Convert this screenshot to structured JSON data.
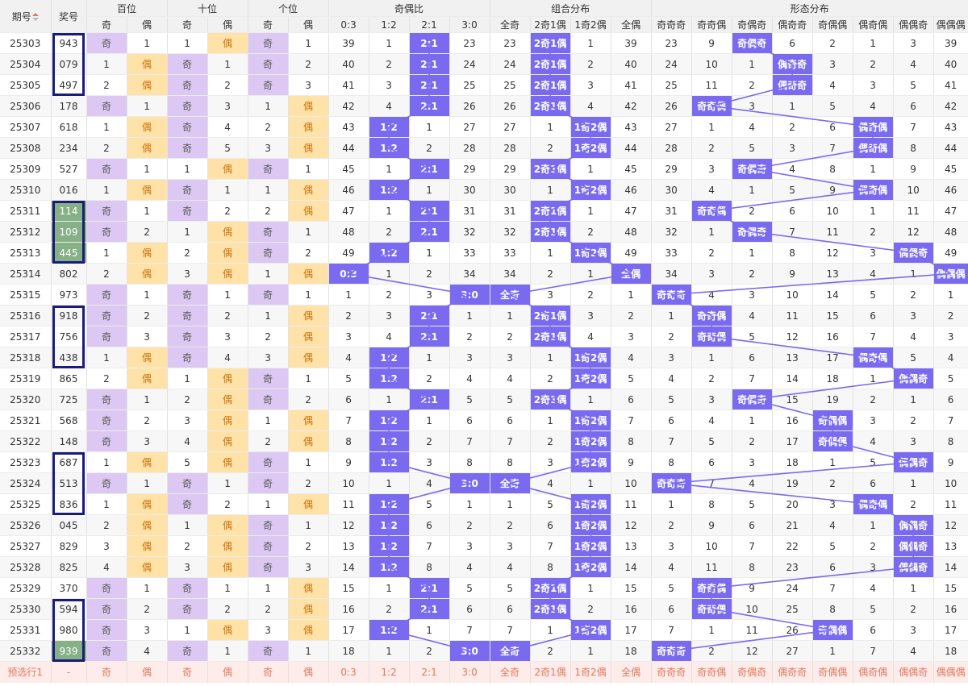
{
  "headers": {
    "issue": "期号",
    "draw": "奖号",
    "hundreds": "百位",
    "tens": "十位",
    "units": "个位",
    "oe_ratio": "奇偶比",
    "combo": "组合分布",
    "shape": "形态分布",
    "sub_qi": "奇",
    "sub_ou": "偶",
    "ratio_cols": [
      "0:3",
      "1:2",
      "2:1",
      "3:0"
    ],
    "combo_cols": [
      "全奇",
      "2奇1偶",
      "1奇2偶",
      "全偶"
    ],
    "shape_cols": [
      "奇奇奇",
      "奇奇偶",
      "奇偶奇",
      "偶奇奇",
      "奇偶偶",
      "偶奇偶",
      "偶偶奇",
      "偶偶偶"
    ]
  },
  "colors": {
    "hit": "#7a6af0",
    "qi": "#dcc8f2",
    "ou": "#ffe2a8",
    "frame": "#1b1b7a",
    "green": "#86b186",
    "preset": "#fdece9"
  },
  "rows": [
    [
      "25303",
      "943",
      "奇",
      "1",
      "1",
      "偶",
      "奇",
      "1",
      "39",
      "1",
      "2:1",
      "23",
      "23",
      "2奇1偶",
      "1",
      "39",
      "23",
      "9",
      "奇偶奇",
      "6",
      "2",
      "1",
      "3",
      "39"
    ],
    [
      "25304",
      "079",
      "1",
      "偶",
      "奇",
      "1",
      "奇",
      "2",
      "40",
      "2",
      "2:1",
      "24",
      "24",
      "2奇1偶",
      "2",
      "40",
      "24",
      "10",
      "1",
      "偶奇奇",
      "3",
      "2",
      "4",
      "40"
    ],
    [
      "25305",
      "497",
      "2",
      "偶",
      "奇",
      "2",
      "奇",
      "3",
      "41",
      "3",
      "2:1",
      "25",
      "25",
      "2奇1偶",
      "3",
      "41",
      "25",
      "11",
      "2",
      "偶奇奇",
      "4",
      "3",
      "5",
      "41"
    ],
    [
      "25306",
      "178",
      "奇",
      "1",
      "奇",
      "3",
      "1",
      "偶",
      "42",
      "4",
      "2:1",
      "26",
      "26",
      "2奇1偶",
      "4",
      "42",
      "26",
      "奇奇偶",
      "3",
      "1",
      "5",
      "4",
      "6",
      "42"
    ],
    [
      "25307",
      "618",
      "1",
      "偶",
      "奇",
      "4",
      "2",
      "偶",
      "43",
      "1:2",
      "1",
      "27",
      "27",
      "1",
      "1奇2偶",
      "43",
      "27",
      "1",
      "4",
      "2",
      "6",
      "偶奇偶",
      "7",
      "43"
    ],
    [
      "25308",
      "234",
      "2",
      "偶",
      "奇",
      "5",
      "3",
      "偶",
      "44",
      "1:2",
      "2",
      "28",
      "28",
      "2",
      "1奇2偶",
      "44",
      "28",
      "2",
      "5",
      "3",
      "7",
      "偶奇偶",
      "8",
      "44"
    ],
    [
      "25309",
      "527",
      "奇",
      "1",
      "1",
      "偶",
      "奇",
      "1",
      "45",
      "1",
      "2:1",
      "29",
      "29",
      "2奇1偶",
      "1",
      "45",
      "29",
      "3",
      "奇偶奇",
      "4",
      "8",
      "1",
      "9",
      "45"
    ],
    [
      "25310",
      "016",
      "1",
      "偶",
      "奇",
      "1",
      "1",
      "偶",
      "46",
      "1:2",
      "1",
      "30",
      "30",
      "1",
      "1奇2偶",
      "46",
      "30",
      "4",
      "1",
      "5",
      "9",
      "偶奇偶",
      "10",
      "46"
    ],
    [
      "25311",
      "114",
      "奇",
      "1",
      "奇",
      "2",
      "2",
      "偶",
      "47",
      "1",
      "2:1",
      "31",
      "31",
      "2奇1偶",
      "1",
      "47",
      "31",
      "奇奇偶",
      "2",
      "6",
      "10",
      "1",
      "11",
      "47"
    ],
    [
      "25312",
      "109",
      "奇",
      "2",
      "1",
      "偶",
      "奇",
      "1",
      "48",
      "2",
      "2:1",
      "32",
      "32",
      "2奇1偶",
      "2",
      "48",
      "32",
      "1",
      "奇偶奇",
      "7",
      "11",
      "2",
      "12",
      "48"
    ],
    [
      "25313",
      "445",
      "1",
      "偶",
      "2",
      "偶",
      "奇",
      "2",
      "49",
      "1:2",
      "1",
      "33",
      "33",
      "1",
      "1奇2偶",
      "49",
      "33",
      "2",
      "1",
      "8",
      "12",
      "3",
      "偶偶奇",
      "49"
    ],
    [
      "25314",
      "802",
      "2",
      "偶",
      "3",
      "偶",
      "1",
      "偶",
      "0:3",
      "1",
      "2",
      "34",
      "34",
      "2",
      "1",
      "全偶",
      "34",
      "3",
      "2",
      "9",
      "13",
      "4",
      "1",
      "偶偶偶"
    ],
    [
      "25315",
      "973",
      "奇",
      "1",
      "奇",
      "1",
      "奇",
      "1",
      "1",
      "2",
      "3",
      "3:0",
      "全奇",
      "3",
      "2",
      "1",
      "奇奇奇",
      "4",
      "3",
      "10",
      "14",
      "5",
      "2",
      "1"
    ],
    [
      "25316",
      "918",
      "奇",
      "2",
      "奇",
      "2",
      "1",
      "偶",
      "2",
      "3",
      "2:1",
      "1",
      "1",
      "2奇1偶",
      "3",
      "2",
      "1",
      "奇奇偶",
      "4",
      "11",
      "15",
      "6",
      "3",
      "2"
    ],
    [
      "25317",
      "756",
      "奇",
      "3",
      "奇",
      "3",
      "2",
      "偶",
      "3",
      "4",
      "2:1",
      "2",
      "2",
      "2奇1偶",
      "4",
      "3",
      "2",
      "奇奇偶",
      "5",
      "12",
      "16",
      "7",
      "4",
      "3"
    ],
    [
      "25318",
      "438",
      "1",
      "偶",
      "奇",
      "4",
      "3",
      "偶",
      "4",
      "1:2",
      "1",
      "3",
      "3",
      "1",
      "1奇2偶",
      "4",
      "3",
      "1",
      "6",
      "13",
      "17",
      "偶奇偶",
      "5",
      "4"
    ],
    [
      "25319",
      "865",
      "2",
      "偶",
      "1",
      "偶",
      "奇",
      "1",
      "5",
      "1:2",
      "2",
      "4",
      "4",
      "2",
      "1奇2偶",
      "5",
      "4",
      "2",
      "7",
      "14",
      "18",
      "1",
      "偶偶奇",
      "5"
    ],
    [
      "25320",
      "725",
      "奇",
      "1",
      "2",
      "偶",
      "奇",
      "2",
      "6",
      "1",
      "2:1",
      "5",
      "5",
      "2奇1偶",
      "1",
      "6",
      "5",
      "3",
      "奇偶奇",
      "15",
      "19",
      "2",
      "1",
      "6"
    ],
    [
      "25321",
      "568",
      "奇",
      "2",
      "3",
      "偶",
      "1",
      "偶",
      "7",
      "1:2",
      "1",
      "6",
      "6",
      "1",
      "1奇2偶",
      "7",
      "6",
      "4",
      "1",
      "16",
      "奇偶偶",
      "3",
      "2",
      "7"
    ],
    [
      "25322",
      "148",
      "奇",
      "3",
      "4",
      "偶",
      "2",
      "偶",
      "8",
      "1:2",
      "2",
      "7",
      "7",
      "2",
      "1奇2偶",
      "8",
      "7",
      "5",
      "2",
      "17",
      "奇偶偶",
      "4",
      "3",
      "8"
    ],
    [
      "25323",
      "687",
      "1",
      "偶",
      "5",
      "偶",
      "奇",
      "1",
      "9",
      "1:2",
      "3",
      "8",
      "8",
      "3",
      "1奇2偶",
      "9",
      "8",
      "6",
      "3",
      "18",
      "1",
      "5",
      "偶偶奇",
      "9"
    ],
    [
      "25324",
      "513",
      "奇",
      "1",
      "奇",
      "1",
      "奇",
      "2",
      "10",
      "1",
      "4",
      "3:0",
      "全奇",
      "4",
      "1",
      "10",
      "奇奇奇",
      "7",
      "4",
      "19",
      "2",
      "6",
      "1",
      "10"
    ],
    [
      "25325",
      "836",
      "1",
      "偶",
      "奇",
      "2",
      "1",
      "偶",
      "11",
      "1:2",
      "5",
      "1",
      "1",
      "5",
      "1奇2偶",
      "11",
      "1",
      "8",
      "5",
      "20",
      "3",
      "偶奇偶",
      "2",
      "11"
    ],
    [
      "25326",
      "045",
      "2",
      "偶",
      "1",
      "偶",
      "奇",
      "1",
      "12",
      "1:2",
      "6",
      "2",
      "2",
      "6",
      "1奇2偶",
      "12",
      "2",
      "9",
      "6",
      "21",
      "4",
      "1",
      "偶偶奇",
      "12"
    ],
    [
      "25327",
      "829",
      "3",
      "偶",
      "2",
      "偶",
      "奇",
      "2",
      "13",
      "1:2",
      "7",
      "3",
      "3",
      "7",
      "1奇2偶",
      "13",
      "3",
      "10",
      "7",
      "22",
      "5",
      "2",
      "偶偶奇",
      "13"
    ],
    [
      "25328",
      "825",
      "4",
      "偶",
      "3",
      "偶",
      "奇",
      "3",
      "14",
      "1:2",
      "8",
      "4",
      "4",
      "8",
      "1奇2偶",
      "14",
      "4",
      "11",
      "8",
      "23",
      "6",
      "3",
      "偶偶奇",
      "14"
    ],
    [
      "25329",
      "370",
      "奇",
      "1",
      "奇",
      "1",
      "1",
      "偶",
      "15",
      "1",
      "2:1",
      "5",
      "5",
      "2奇1偶",
      "1",
      "15",
      "5",
      "奇奇偶",
      "9",
      "24",
      "7",
      "4",
      "1",
      "15"
    ],
    [
      "25330",
      "594",
      "奇",
      "2",
      "奇",
      "2",
      "2",
      "偶",
      "16",
      "2",
      "2:1",
      "6",
      "6",
      "2奇1偶",
      "2",
      "16",
      "6",
      "奇奇偶",
      "10",
      "25",
      "8",
      "5",
      "2",
      "16"
    ],
    [
      "25331",
      "980",
      "奇",
      "3",
      "1",
      "偶",
      "3",
      "偶",
      "17",
      "1:2",
      "1",
      "7",
      "7",
      "1",
      "1奇2偶",
      "17",
      "7",
      "1",
      "11",
      "26",
      "奇偶偶",
      "6",
      "3",
      "17"
    ],
    [
      "25332",
      "939",
      "奇",
      "4",
      "奇",
      "1",
      "奇",
      "1",
      "18",
      "1",
      "2",
      "3:0",
      "全奇",
      "2",
      "1",
      "18",
      "奇奇奇",
      "2",
      "12",
      "27",
      "1",
      "7",
      "4",
      "18"
    ]
  ],
  "preset": [
    "预选行1",
    "-",
    "奇",
    "偶",
    "奇",
    "偶",
    "奇",
    "偶",
    "0:3",
    "1:2",
    "2:1",
    "3:0",
    "全奇",
    "2奇1偶",
    "1奇2偶",
    "全偶",
    "奇奇奇",
    "奇奇偶",
    "奇偶奇",
    "偶奇奇",
    "奇偶偶",
    "偶奇偶",
    "偶偶奇",
    "偶偶偶"
  ]
}
